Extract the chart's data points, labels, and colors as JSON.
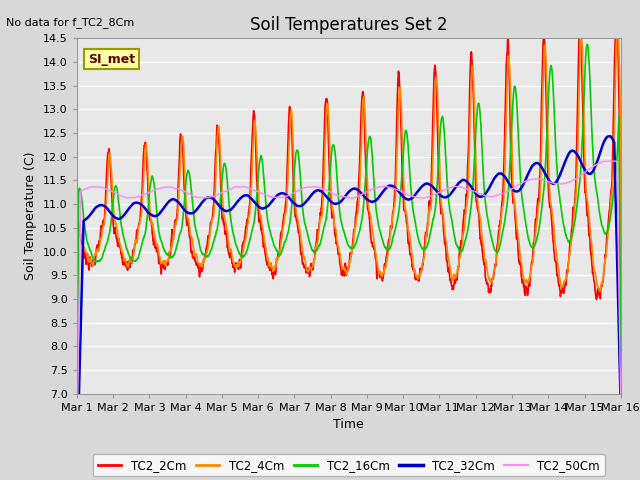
{
  "title": "Soil Temperatures Set 2",
  "no_data_text": "No data for f_TC2_8Cm",
  "xlabel": "Time",
  "ylabel": "Soil Temperature (C)",
  "ylim": [
    7.0,
    14.5
  ],
  "yticks": [
    7.0,
    7.5,
    8.0,
    8.5,
    9.0,
    9.5,
    10.0,
    10.5,
    11.0,
    11.5,
    12.0,
    12.5,
    13.0,
    13.5,
    14.0,
    14.5
  ],
  "xtick_labels": [
    "Mar 1",
    "Mar 2",
    "Mar 3",
    "Mar 4",
    "Mar 5",
    "Mar 6",
    "Mar 7",
    "Mar 8",
    "Mar 9",
    "Mar 10",
    "Mar 11",
    "Mar 12",
    "Mar 13",
    "Mar 14",
    "Mar 15",
    "Mar 16"
  ],
  "series_colors": [
    "#ff0000",
    "#ff8800",
    "#00cc00",
    "#0000cc",
    "#ff88ff"
  ],
  "series_labels": [
    "TC2_2Cm",
    "TC2_4Cm",
    "TC2_16Cm",
    "TC2_32Cm",
    "TC2_50Cm"
  ],
  "series_linewidths": [
    1.2,
    1.2,
    1.2,
    1.8,
    1.0
  ],
  "legend_label": "SI_met",
  "background_color": "#d8d8d8",
  "plot_bg_color": "#e8e8e8",
  "n_points": 2000,
  "figsize": [
    6.4,
    4.8
  ],
  "dpi": 100
}
